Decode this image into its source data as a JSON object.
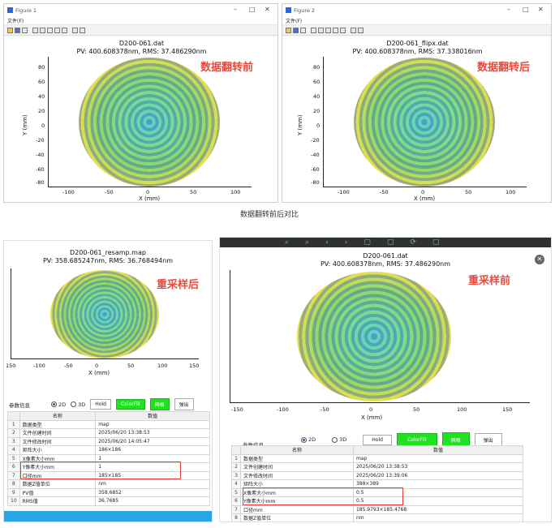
{
  "figure1": {
    "window_title": "Figure 1",
    "menu": "文件(F)",
    "plot_title_line1": "D200-061.dat",
    "plot_title_line2": "PV: 400.608378nm, RMS: 37.486290nm",
    "annotation": "数据翻转前",
    "xlabel": "X (mm)",
    "ylabel": "Y (mm)",
    "xticks": [
      "-100",
      "-50",
      "0",
      "50",
      "100"
    ],
    "yticks": [
      "80",
      "60",
      "40",
      "20",
      "0",
      "-20",
      "-40",
      "-60",
      "-80"
    ]
  },
  "figure2": {
    "window_title": "Figure 2",
    "menu": "文件(F)",
    "plot_title_line1": "D200-061_flipx.dat",
    "plot_title_line2": "PV: 400.608378nm, RMS: 37.338016nm",
    "annotation": "数据翻转后",
    "xlabel": "X (mm)",
    "ylabel": "Y (mm)",
    "xticks": [
      "-100",
      "-50",
      "0",
      "50",
      "100"
    ],
    "yticks": [
      "80",
      "60",
      "40",
      "20",
      "0",
      "-20",
      "-40",
      "-60",
      "-80"
    ]
  },
  "caption": "数据翻转前后对比",
  "bottom_left": {
    "plot_title_line1": "D200-061_resamp.map",
    "plot_title_line2": "PV: 358.685247nm, RMS: 36.768494nm",
    "annotation": "重采样后",
    "xlabel": "X (mm)",
    "xticks": [
      "150",
      "-100",
      "-50",
      "0",
      "50",
      "100",
      "150"
    ],
    "controls": {
      "section": "参数信息",
      "r2d": "2D",
      "r3d": "3D",
      "hold": "Hold",
      "colorfill": "ColorFill",
      "grid": "网格",
      "export": "弹出"
    },
    "table": {
      "headers": [
        "",
        "名称",
        "数值"
      ],
      "rows": [
        [
          "1",
          "数据类型",
          "map"
        ],
        [
          "2",
          "文件创建时间",
          "2025/06/20 13:38:53"
        ],
        [
          "3",
          "文件修改时间",
          "2025/06/20 14:05:47"
        ],
        [
          "4",
          "矩阵大小",
          "186×186"
        ],
        [
          "5",
          "X像素大小mm",
          "1"
        ],
        [
          "6",
          "Y像素大小mm",
          "1"
        ],
        [
          "7",
          "口径mm",
          "185×185"
        ],
        [
          "8",
          "数据Z值单位",
          "nm"
        ],
        [
          "9",
          "PV值",
          "358.6852"
        ],
        [
          "10",
          "RMS值",
          "36.7685"
        ]
      ]
    }
  },
  "bottom_right": {
    "plot_title_line1": "D200-061.dat",
    "plot_title_line2": "PV: 400.608378nm, RMS: 37.486290nm",
    "annotation": "重采样前",
    "xlabel": "X (mm)",
    "xticks": [
      "-150",
      "-100",
      "-50",
      "0",
      "50",
      "100",
      "150"
    ],
    "close_glyph": "✕",
    "controls": {
      "section": "参数信息",
      "r2d": "2D",
      "r3d": "3D",
      "hold": "Hold",
      "colorfill": "ColorFill",
      "grid": "网格",
      "export": "弹出"
    },
    "table": {
      "headers": [
        "",
        "名称",
        "数值"
      ],
      "rows": [
        [
          "1",
          "数据类型",
          "map"
        ],
        [
          "2",
          "文件创建时间",
          "2025/06/20 13:38:53"
        ],
        [
          "3",
          "文件修改时间",
          "2025/06/20 13:39:06"
        ],
        [
          "4",
          "矩阵大小",
          "388×389"
        ],
        [
          "5",
          "X像素大小mm",
          "0.5"
        ],
        [
          "6",
          "Y像素大小mm",
          "0.5"
        ],
        [
          "7",
          "口径mm",
          "185.9793×185.4768"
        ],
        [
          "8",
          "数据Z值单位",
          "nm"
        ]
      ]
    }
  },
  "colors": {
    "annotation": "#e84a3c",
    "green_button": "#22e022",
    "highlight": "#e23b3b",
    "ring_center": "#5fd0c8",
    "ring_edge": "#d9261f"
  }
}
